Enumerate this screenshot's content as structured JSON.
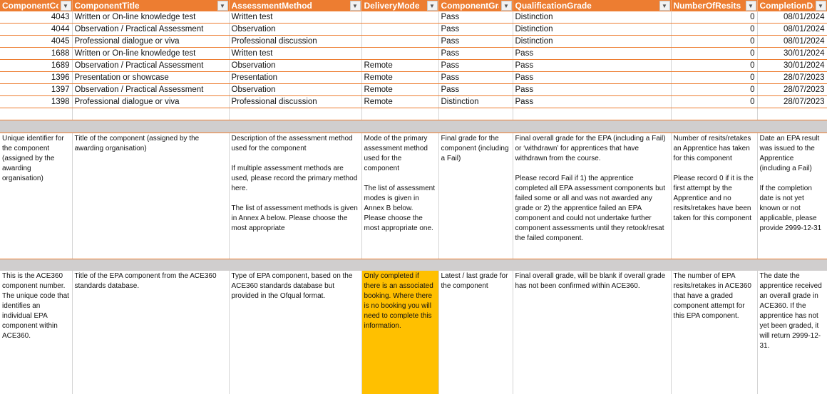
{
  "columns": [
    "ComponentCode",
    "ComponentTitle",
    "AssessmentMethod",
    "DeliveryMode",
    "ComponentGrade",
    "QualificationGrade",
    "NumberOfResits",
    "CompletionDate"
  ],
  "column_headers_visible": [
    "ComponentCod",
    "ComponentTitle",
    "AssessmentMethod",
    "DeliveryMode",
    "ComponentGra",
    "QualificationGrade",
    "NumberOfResits",
    "CompletionDa"
  ],
  "rows": [
    [
      "4043",
      "Written or On-line knowledge test",
      "Written test",
      "",
      "Pass",
      "Distinction",
      "0",
      "08/01/2024"
    ],
    [
      "4044",
      "Observation / Practical Assessment",
      "Observation",
      "",
      "Pass",
      "Distinction",
      "0",
      "08/01/2024"
    ],
    [
      "4045",
      "Professional dialogue or viva",
      "Professional discussion",
      "",
      "Pass",
      "Distinction",
      "0",
      "08/01/2024"
    ],
    [
      "1688",
      "Written or On-line knowledge test",
      "Written test",
      "",
      "Pass",
      "Pass",
      "0",
      "30/01/2024"
    ],
    [
      "1689",
      "Observation / Practical Assessment",
      "Observation",
      "Remote",
      "Pass",
      "Pass",
      "0",
      "30/01/2024"
    ],
    [
      "1396",
      "Presentation or showcase",
      "Presentation",
      "Remote",
      "Pass",
      "Pass",
      "0",
      "28/07/2023"
    ],
    [
      "1397",
      "Observation / Practical Assessment",
      "Observation",
      "Remote",
      "Pass",
      "Pass",
      "0",
      "28/07/2023"
    ],
    [
      "1398",
      "Professional dialogue or viva",
      "Professional discussion",
      "Remote",
      "Distinction",
      "Pass",
      "0",
      "28/07/2023"
    ]
  ],
  "descriptions": [
    "Unique identifier for the component (assigned by the awarding organisation)",
    "Title of the component (assigned by the awarding organisation)",
    "Description of the assessment method used for the component\n\nIf multiple assessment methods are used, please record the primary method here.\n\nThe list of assessment methods is given in Annex A below. Please choose the most appropriate",
    "Mode of the primary assessment method used for the component\n\nThe list of assessment modes is given in Annex B below. Please choose the most appropriate one.",
    "Final grade for the component (including a Fail)",
    "Final overall grade for the EPA (including a Fail) or ‘withdrawn’ for apprentices that have withdrawn from the course.\n\nPlease record Fail if 1) the apprentice completed all EPA assessment components but failed some or all and was not awarded any grade or 2) the apprentice failed an EPA component and could not undertake further component assessments until they retook/resat the failed component.",
    "Number of resits/retakes an Apprentice has taken for this component\n\nPlease record 0 if it is the first attempt by the Apprentice and no resits/retakes have been taken for this component",
    "Date an EPA result was issued to the Apprentice (including a Fail)\n\nIf the completion date is not yet known or not applicable, please provide 2999-12-31"
  ],
  "ace360_notes": [
    "This is the ACE360 component number. The unique code that identifies an individual EPA component within ACE360.",
    "Title of the EPA component from the ACE360 standards database.",
    "Type of EPA component, based on the ACE360 standards database but provided in the Ofqual format.",
    "Only completed if there is an associated booking. Where there is no booking you will need to complete this information.",
    "Latest / last grade for the component",
    "Final overall grade, will be blank if overall grade has not been confirmed within ACE360.",
    "The number of EPA resits/retakes in ACE360 that have a graded component attempt for this EPA component.",
    "The date the apprentice received an overall grade in ACE360. If the apprentice has not yet been graded, it will return 2999-12-31."
  ],
  "colors": {
    "header": "#ED7D31",
    "highlight": "#FFC000",
    "separator": "#D0CECE"
  },
  "icons": {
    "filter": "filter-dropdown-icon"
  }
}
